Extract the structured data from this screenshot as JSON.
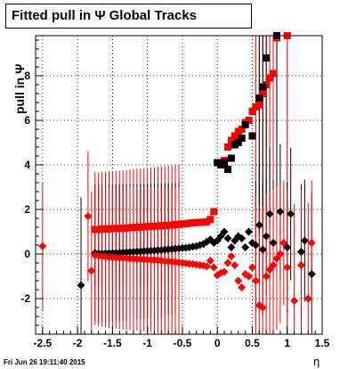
{
  "title": "Fitted pull in  Ψ   Global Tracks",
  "footer": "Fri Jun 26 19:11:40 2015",
  "colors": {
    "black_series": "#000000",
    "red_series": "#ff0000",
    "grid": "#000000"
  },
  "chart_data": {
    "type": "scatter",
    "title": "Fitted pull in  Ψ   Global Tracks",
    "xlabel": "η",
    "ylabel": "pull in  Ψ",
    "xlim": [
      -2.6,
      1.5
    ],
    "ylim": [
      -3.6,
      9.8
    ],
    "x_ticks": [
      -2.5,
      -2,
      -1.5,
      -1,
      -0.5,
      0,
      0.5,
      1,
      1.5
    ],
    "x_tick_labels": [
      "-2.5",
      "-2",
      "-1.5",
      "-1",
      "-0.5",
      "0",
      "0.5",
      "1",
      "1.5"
    ],
    "y_ticks": [
      -2,
      0,
      2,
      4,
      6,
      8
    ],
    "y_tick_labels": [
      "-2",
      "0",
      "2",
      "4",
      "6",
      "8"
    ],
    "grid": true,
    "series": [
      {
        "marker": "square",
        "color": "#ff0000",
        "points": [
          [
            -1.75,
            1.1
          ],
          [
            -1.7,
            1.1
          ],
          [
            -1.65,
            1.12
          ],
          [
            -1.6,
            1.12
          ],
          [
            -1.55,
            1.13
          ],
          [
            -1.5,
            1.14
          ],
          [
            -1.45,
            1.15
          ],
          [
            -1.4,
            1.15
          ],
          [
            -1.35,
            1.16
          ],
          [
            -1.3,
            1.17
          ],
          [
            -1.25,
            1.18
          ],
          [
            -1.2,
            1.19
          ],
          [
            -1.15,
            1.2
          ],
          [
            -1.1,
            1.21
          ],
          [
            -1.05,
            1.22
          ],
          [
            -1.0,
            1.23
          ],
          [
            -0.95,
            1.24
          ],
          [
            -0.9,
            1.25
          ],
          [
            -0.85,
            1.26
          ],
          [
            -0.8,
            1.27
          ],
          [
            -0.75,
            1.28
          ],
          [
            -0.7,
            1.29
          ],
          [
            -0.65,
            1.3
          ],
          [
            -0.6,
            1.32
          ],
          [
            -0.55,
            1.33
          ],
          [
            -0.5,
            1.35
          ],
          [
            -0.45,
            1.36
          ],
          [
            -0.4,
            1.38
          ],
          [
            -0.35,
            1.4
          ],
          [
            -0.3,
            1.41
          ],
          [
            -0.25,
            1.42
          ],
          [
            -0.2,
            1.43
          ],
          [
            -0.15,
            1.45
          ],
          [
            -0.1,
            1.55
          ],
          [
            -0.05,
            1.9
          ],
          [
            0.0,
            4.1
          ],
          [
            0.05,
            4.05
          ],
          [
            0.1,
            4.2
          ],
          [
            0.15,
            4.8
          ],
          [
            0.2,
            5.1
          ],
          [
            0.25,
            5.3
          ],
          [
            0.3,
            5.5
          ],
          [
            0.35,
            5.6
          ],
          [
            0.4,
            5.9
          ],
          [
            0.45,
            6.0
          ],
          [
            0.5,
            6.4
          ],
          [
            0.55,
            6.6
          ],
          [
            0.6,
            6.7
          ],
          [
            0.65,
            7.2
          ],
          [
            0.7,
            7.6
          ],
          [
            0.75,
            7.9
          ],
          [
            0.8,
            8.1
          ],
          [
            0.85,
            9.7
          ],
          [
            1.0,
            9.8
          ]
        ]
      },
      {
        "marker": "square",
        "color": "#000000",
        "points": [
          [
            0.0,
            4.1
          ],
          [
            0.05,
            4.0
          ],
          [
            0.1,
            4.1
          ],
          [
            0.15,
            3.8
          ],
          [
            0.2,
            4.3
          ],
          [
            0.25,
            4.9
          ],
          [
            0.3,
            5.0
          ],
          [
            0.35,
            5.2
          ],
          [
            0.4,
            5.8
          ],
          [
            0.5,
            5.3
          ],
          [
            0.6,
            7.0
          ],
          [
            0.65,
            7.5
          ],
          [
            0.7,
            8.8
          ],
          [
            0.85,
            9.8
          ]
        ]
      },
      {
        "marker": "diamond",
        "color": "#000000",
        "points": [
          [
            -1.95,
            -1.4
          ],
          [
            -1.75,
            0.05
          ],
          [
            -1.7,
            0.03
          ],
          [
            -1.65,
            0.02
          ],
          [
            -1.6,
            0.03
          ],
          [
            -1.55,
            0.04
          ],
          [
            -1.5,
            0.05
          ],
          [
            -1.45,
            0.05
          ],
          [
            -1.4,
            0.06
          ],
          [
            -1.35,
            0.07
          ],
          [
            -1.3,
            0.08
          ],
          [
            -1.25,
            0.09
          ],
          [
            -1.2,
            0.1
          ],
          [
            -1.15,
            0.11
          ],
          [
            -1.1,
            0.12
          ],
          [
            -1.05,
            0.13
          ],
          [
            -1.0,
            0.14
          ],
          [
            -0.95,
            0.15
          ],
          [
            -0.9,
            0.16
          ],
          [
            -0.85,
            0.17
          ],
          [
            -0.8,
            0.18
          ],
          [
            -0.75,
            0.2
          ],
          [
            -0.7,
            0.21
          ],
          [
            -0.65,
            0.22
          ],
          [
            -0.6,
            0.24
          ],
          [
            -0.55,
            0.25
          ],
          [
            -0.5,
            0.27
          ],
          [
            -0.45,
            0.28
          ],
          [
            -0.4,
            0.3
          ],
          [
            -0.35,
            0.33
          ],
          [
            -0.3,
            0.35
          ],
          [
            -0.25,
            0.4
          ],
          [
            -0.2,
            0.45
          ],
          [
            -0.15,
            0.55
          ],
          [
            -0.1,
            0.65
          ],
          [
            -0.05,
            0.5
          ],
          [
            0.0,
            0.6
          ],
          [
            0.05,
            0.8
          ],
          [
            0.1,
            1.0
          ],
          [
            0.15,
            0.7
          ],
          [
            0.2,
            0.3
          ],
          [
            0.25,
            0.6
          ],
          [
            0.3,
            0.8
          ],
          [
            0.35,
            0.7
          ],
          [
            0.4,
            0.3
          ],
          [
            0.45,
            1.0
          ],
          [
            0.5,
            0.5
          ],
          [
            0.55,
            0.4
          ],
          [
            0.6,
            1.3
          ],
          [
            0.65,
            0.2
          ],
          [
            0.7,
            0.8
          ],
          [
            0.75,
            1.8
          ],
          [
            0.8,
            0.5
          ],
          [
            0.9,
            1.9
          ],
          [
            1.0,
            0.3
          ],
          [
            1.05,
            1.8
          ],
          [
            1.2,
            0.1
          ],
          [
            1.25,
            0.6
          ],
          [
            1.35,
            -0.9
          ]
        ]
      },
      {
        "marker": "diamond",
        "color": "#ff0000",
        "points": [
          [
            -2.5,
            0.35
          ],
          [
            -1.85,
            1.7
          ],
          [
            -1.8,
            -0.75
          ],
          [
            -1.75,
            -0.05
          ],
          [
            -1.7,
            -0.08
          ],
          [
            -1.65,
            -0.1
          ],
          [
            -1.6,
            -0.12
          ],
          [
            -1.55,
            -0.14
          ],
          [
            -1.5,
            -0.15
          ],
          [
            -1.45,
            -0.16
          ],
          [
            -1.4,
            -0.17
          ],
          [
            -1.35,
            -0.18
          ],
          [
            -1.3,
            -0.19
          ],
          [
            -1.25,
            -0.2
          ],
          [
            -1.2,
            -0.21
          ],
          [
            -1.15,
            -0.22
          ],
          [
            -1.1,
            -0.23
          ],
          [
            -1.05,
            -0.24
          ],
          [
            -1.0,
            -0.25
          ],
          [
            -0.95,
            -0.26
          ],
          [
            -0.9,
            -0.27
          ],
          [
            -0.85,
            -0.28
          ],
          [
            -0.8,
            -0.3
          ],
          [
            -0.75,
            -0.32
          ],
          [
            -0.7,
            -0.33
          ],
          [
            -0.65,
            -0.35
          ],
          [
            -0.6,
            -0.36
          ],
          [
            -0.55,
            -0.38
          ],
          [
            -0.5,
            -0.4
          ],
          [
            -0.45,
            -0.42
          ],
          [
            -0.4,
            -0.44
          ],
          [
            -0.35,
            -0.45
          ],
          [
            -0.3,
            -0.48
          ],
          [
            -0.25,
            -0.5
          ],
          [
            -0.2,
            -0.52
          ],
          [
            -0.15,
            -0.55
          ],
          [
            -0.1,
            -0.3
          ],
          [
            -0.05,
            -0.6
          ],
          [
            0.0,
            -0.95
          ],
          [
            0.05,
            -0.85
          ],
          [
            0.1,
            -0.8
          ],
          [
            0.15,
            -0.4
          ],
          [
            0.2,
            -0.1
          ],
          [
            0.25,
            -0.5
          ],
          [
            0.3,
            -1.2
          ],
          [
            0.35,
            -1.5
          ],
          [
            0.4,
            -0.9
          ],
          [
            0.45,
            -1.0
          ],
          [
            0.5,
            -0.6
          ],
          [
            0.55,
            -1.2
          ],
          [
            0.6,
            -2.3
          ],
          [
            0.65,
            -2.4
          ],
          [
            0.7,
            -1.0
          ],
          [
            0.75,
            -0.7
          ],
          [
            0.8,
            -0.5
          ],
          [
            0.85,
            -0.2
          ],
          [
            0.9,
            0.0
          ],
          [
            0.95,
            0.5
          ],
          [
            1.0,
            -0.6
          ],
          [
            1.1,
            -2.1
          ],
          [
            1.2,
            -0.5
          ],
          [
            1.3,
            -2.0
          ],
          [
            1.35,
            0.5
          ]
        ]
      }
    ]
  }
}
